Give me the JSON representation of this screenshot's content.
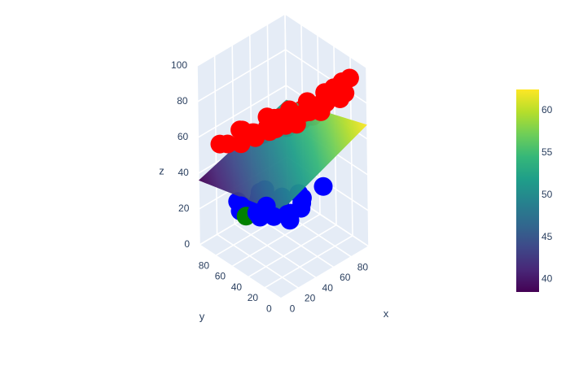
{
  "chart_data": {
    "type": "scatter3d",
    "title": "",
    "axes": {
      "x": {
        "label": "x",
        "ticks": [
          "0",
          "20",
          "40",
          "60",
          "80"
        ],
        "range": [
          0,
          100
        ]
      },
      "y": {
        "label": "y",
        "ticks": [
          "0",
          "20",
          "40",
          "60",
          "80"
        ],
        "range": [
          0,
          100
        ]
      },
      "z": {
        "label": "z",
        "ticks": [
          "0",
          "20",
          "40",
          "60",
          "80",
          "100"
        ],
        "range": [
          0,
          100
        ]
      }
    },
    "surface": {
      "type": "plane",
      "colorscale": "Viridis",
      "corners_xyz": [
        [
          0,
          0,
          48
        ],
        [
          100,
          0,
          68
        ],
        [
          100,
          100,
          52
        ],
        [
          0,
          100,
          36
        ]
      ]
    },
    "colorbar": {
      "ticks": [
        "40",
        "45",
        "50",
        "55",
        "60"
      ],
      "tick_values": [
        40,
        45,
        50,
        55,
        60
      ],
      "range": [
        38.5,
        62.5
      ],
      "colors": [
        "#440154",
        "#482878",
        "#3e4989",
        "#31688e",
        "#26828e",
        "#1f9e89",
        "#35b779",
        "#6ece58",
        "#b5de2b",
        "#fde725"
      ]
    },
    "series": [
      {
        "color": "#ff0000",
        "points": [
          [
            5,
            5,
            98
          ],
          [
            10,
            8,
            92
          ],
          [
            20,
            5,
            95
          ],
          [
            30,
            10,
            90
          ],
          [
            40,
            8,
            96
          ],
          [
            50,
            5,
            92
          ],
          [
            60,
            10,
            88
          ],
          [
            70,
            8,
            95
          ],
          [
            80,
            5,
            90
          ],
          [
            90,
            10,
            94
          ],
          [
            8,
            20,
            85
          ],
          [
            18,
            25,
            88
          ],
          [
            28,
            22,
            82
          ],
          [
            38,
            28,
            86
          ],
          [
            48,
            20,
            84
          ],
          [
            58,
            25,
            80
          ],
          [
            68,
            22,
            78
          ],
          [
            78,
            28,
            84
          ],
          [
            88,
            20,
            80
          ],
          [
            95,
            25,
            86
          ],
          [
            10,
            40,
            75
          ],
          [
            22,
            38,
            78
          ],
          [
            35,
            42,
            72
          ],
          [
            45,
            40,
            76
          ],
          [
            55,
            38,
            70
          ],
          [
            65,
            42,
            74
          ],
          [
            75,
            40,
            68
          ],
          [
            85,
            38,
            72
          ],
          [
            92,
            42,
            70
          ],
          [
            12,
            60,
            65
          ],
          [
            25,
            58,
            68
          ],
          [
            38,
            62,
            62
          ],
          [
            52,
            60,
            66
          ],
          [
            62,
            58,
            60
          ],
          [
            72,
            62,
            64
          ],
          [
            82,
            60,
            58
          ],
          [
            15,
            80,
            58
          ],
          [
            30,
            78,
            62
          ],
          [
            45,
            82,
            55
          ],
          [
            60,
            80,
            60
          ],
          [
            75,
            78,
            56
          ],
          [
            20,
            95,
            52
          ],
          [
            40,
            92,
            55
          ]
        ]
      },
      {
        "color": "#0000ff",
        "points": [
          [
            5,
            30,
            35
          ],
          [
            15,
            45,
            30
          ],
          [
            25,
            35,
            28
          ],
          [
            35,
            55,
            25
          ],
          [
            45,
            40,
            22
          ],
          [
            55,
            60,
            20
          ],
          [
            65,
            45,
            18
          ],
          [
            75,
            55,
            15
          ],
          [
            85,
            65,
            12
          ],
          [
            95,
            50,
            20
          ],
          [
            90,
            75,
            10
          ],
          [
            80,
            85,
            8
          ],
          [
            70,
            95,
            12
          ],
          [
            60,
            90,
            15
          ],
          [
            50,
            80,
            18
          ],
          [
            40,
            70,
            22
          ],
          [
            30,
            85,
            20
          ],
          [
            20,
            70,
            25
          ],
          [
            10,
            60,
            28
          ],
          [
            45,
            95,
            10
          ],
          [
            55,
            70,
            18
          ],
          [
            35,
            25,
            30
          ],
          [
            25,
            15,
            32
          ]
        ]
      },
      {
        "color": "#008000",
        "points": [
          [
            12,
            55,
            26
          ]
        ]
      }
    ]
  }
}
